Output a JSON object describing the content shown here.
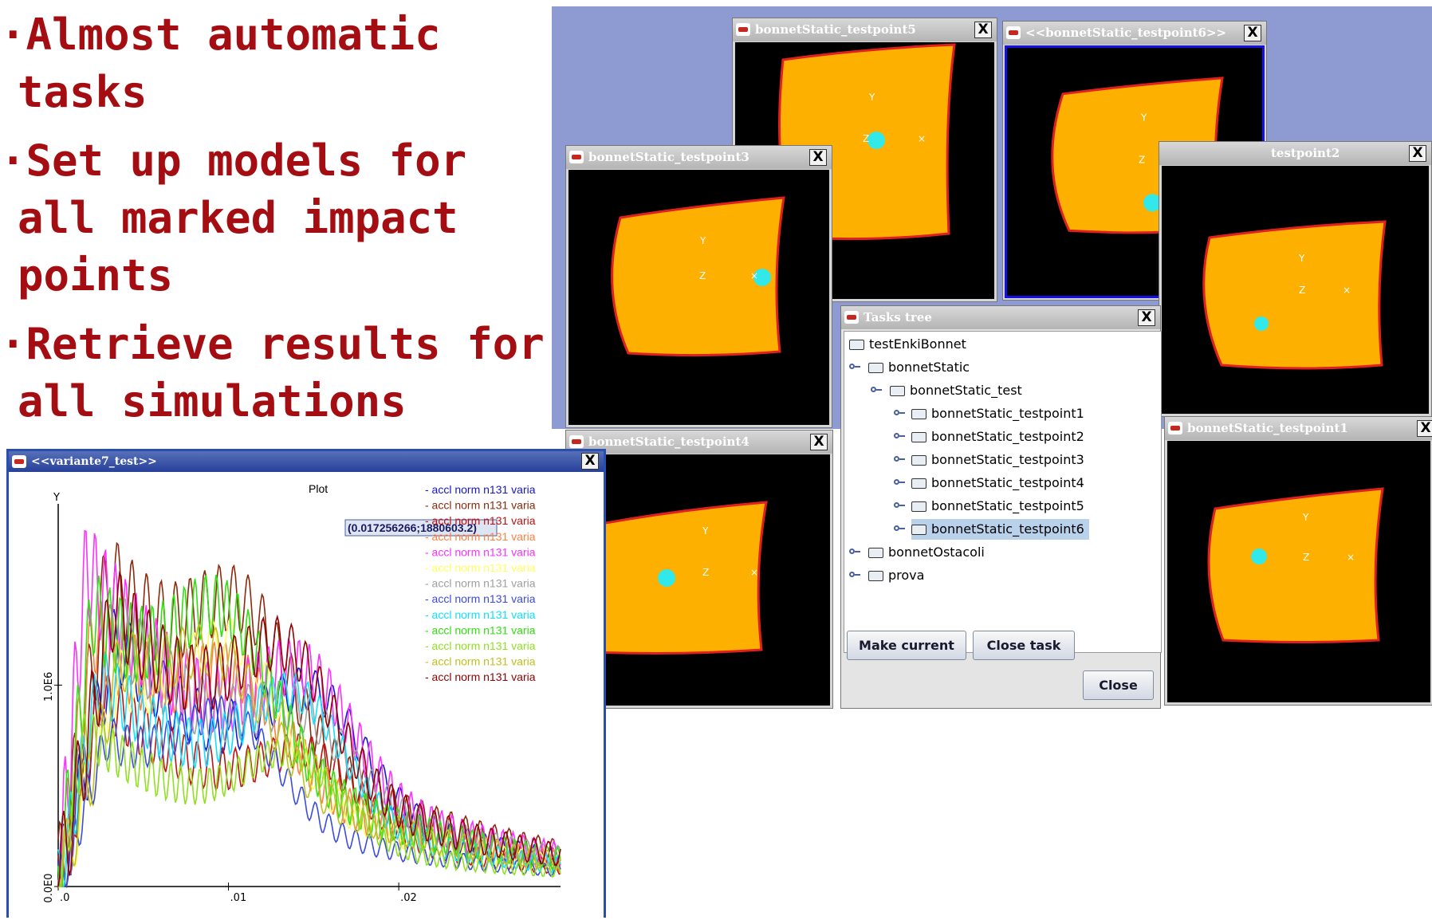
{
  "bullets": [
    "·Almost automatic tasks",
    "·Set up models for all marked impact points",
    "·Retrieve results for all simulations"
  ],
  "windows": {
    "tp5": {
      "title": "bonnetStatic_testpoint5"
    },
    "tp6": {
      "title": "<<bonnetStatic_testpoint6>>"
    },
    "tp2": {
      "title": "testpoint2"
    },
    "tp3": {
      "title": "bonnetStatic_testpoint3"
    },
    "tp4": {
      "title": "bonnetStatic_testpoint4"
    },
    "tp1": {
      "title": "bonnetStatic_testpoint1"
    }
  },
  "axes_labels": {
    "y": "Y",
    "z": "Z",
    "x": "×"
  },
  "tasks_tree": {
    "title": "Tasks tree",
    "nodes": [
      "testEnkiBonnet",
      "bonnetStatic",
      "bonnetStatic_test",
      "bonnetStatic_testpoint1",
      "bonnetStatic_testpoint2",
      "bonnetStatic_testpoint3",
      "bonnetStatic_testpoint4",
      "bonnetStatic_testpoint5",
      "bonnetStatic_testpoint6",
      "bonnetOstacoli",
      "prova"
    ],
    "selected": "bonnetStatic_testpoint6",
    "buttons": {
      "make_current": "Make current",
      "close_task": "Close task",
      "close": "Close"
    }
  },
  "close_glyph": "X",
  "plot_window": {
    "title": "<<variante7_test>>",
    "plot_title": "Plot",
    "tooltip": "(0.017256266;1880603.2)",
    "legend_label": "- accl norm n131 varia",
    "legend_colors": [
      "#1515d6",
      "#8b2a0c",
      "#c01010",
      "#ff8040",
      "#ff30ff",
      "#ffff60",
      "#a0a0a0",
      "#3b4be0",
      "#10e0ff",
      "#30e010",
      "#90e020",
      "#c0c020",
      "#900000"
    ]
  },
  "chart_data": {
    "type": "line",
    "title": "Plot",
    "xlabel": "",
    "ylabel": "Y",
    "x_ticks": [
      ".0",
      ".01",
      ".02"
    ],
    "y_ticks": [
      "0.0E0",
      "1.0E6"
    ],
    "xlim": [
      0,
      0.0295
    ],
    "ylim": [
      0,
      1900000
    ],
    "series_count": 13,
    "series_label": "accl norm n131 varia",
    "annotation": "(0.017256266;1880603.2)"
  }
}
